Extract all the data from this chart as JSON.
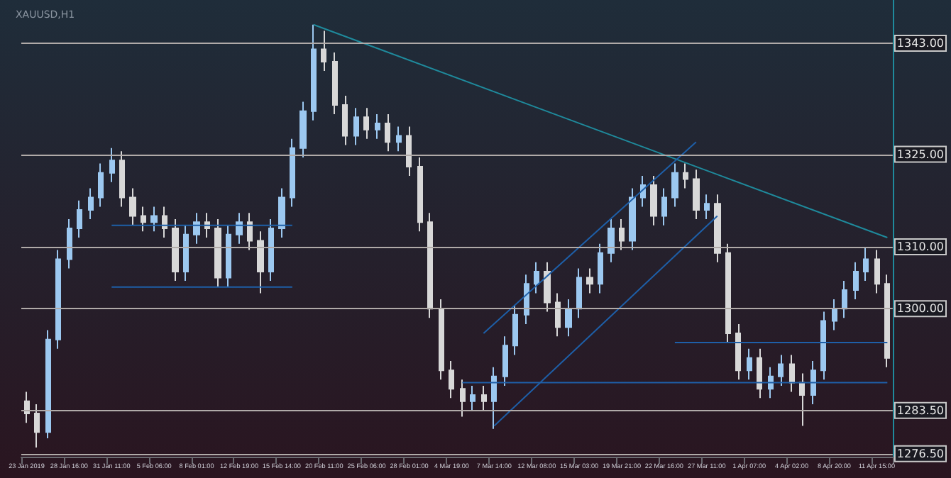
{
  "chart_data": {
    "type": "candlestick",
    "title": "XAUUSD,H1",
    "categories": [
      "23 Jan 2019",
      null,
      null,
      null,
      "28 Jan 16:00",
      null,
      null,
      null,
      "31 Jan 11:00",
      null,
      null,
      null,
      "5 Feb 06:00",
      null,
      null,
      null,
      "8 Feb 01:00",
      null,
      null,
      null,
      "12 Feb 19:00",
      null,
      null,
      null,
      "15 Feb 14:00",
      null,
      null,
      null,
      "20 Feb 11:00",
      null,
      null,
      null,
      "25 Feb 06:00",
      null,
      null,
      null,
      "28 Feb 01:00",
      null,
      null,
      null,
      "4 Mar 19:00",
      null,
      null,
      null,
      "7 Mar 14:00",
      null,
      null,
      null,
      "12 Mar 08:00",
      null,
      null,
      null,
      "15 Mar 03:00",
      null,
      null,
      null,
      "19 Mar 21:00",
      null,
      null,
      null,
      "22 Mar 16:00",
      null,
      null,
      null,
      "27 Mar 11:00",
      null,
      null,
      null,
      "1 Apr 07:00",
      null,
      null,
      null,
      "4 Apr 02:00",
      null,
      null,
      null,
      "8 Apr 20:00",
      null,
      null,
      null,
      "11 Apr 15:00",
      null
    ],
    "ylim": [
      1276,
      1350
    ],
    "yticks": [
      {
        "value": 1343,
        "label": "1343.00"
      },
      {
        "value": 1325,
        "label": "1325.00"
      },
      {
        "value": 1310,
        "label": "1310.00"
      },
      {
        "value": 1300,
        "label": "1300.00"
      },
      {
        "value": 1283.5,
        "label": "1283.50"
      },
      {
        "value": 1276.5,
        "label": "1276.50"
      }
    ],
    "grid": "y",
    "series": [
      {
        "type": "candlestick",
        "colors": [
          "#d8d8d8",
          "#d8d8d8",
          "#9cc8f0",
          "#9cc8f0",
          "#9cc8f0",
          "#9cc8f0",
          "#9cc8f0",
          "#9cc8f0",
          "#9cc8f0",
          "#d8d8d8",
          "#d8d8d8",
          "#d8d8d8",
          "#9cc8f0",
          "#d8d8d8",
          "#d8d8d8",
          "#9cc8f0",
          "#9cc8f0",
          "#d8d8d8",
          "#d8d8d8",
          "#9cc8f0",
          "#9cc8f0",
          "#d8d8d8",
          "#d8d8d8",
          "#9cc8f0",
          "#9cc8f0",
          "#9cc8f0",
          "#9cc8f0",
          "#9cc8f0",
          "#d8d8d8",
          "#d8d8d8",
          "#d8d8d8",
          "#9cc8f0",
          "#d8d8d8",
          "#9cc8f0",
          "#d8d8d8",
          "#9cc8f0",
          "#d8d8d8",
          "#d8d8d8",
          "#d8d8d8",
          "#d8d8d8",
          "#d8d8d8",
          "#d8d8d8",
          "#9cc8f0",
          "#d8d8d8",
          "#9cc8f0",
          "#9cc8f0",
          "#9cc8f0",
          "#9cc8f0",
          "#9cc8f0",
          "#d8d8d8",
          "#d8d8d8",
          "#9cc8f0",
          "#9cc8f0",
          "#d8d8d8",
          "#9cc8f0",
          "#9cc8f0",
          "#d8d8d8",
          "#9cc8f0",
          "#9cc8f0",
          "#d8d8d8",
          "#9cc8f0",
          "#9cc8f0",
          "#d8d8d8",
          "#d8d8d8",
          "#9cc8f0",
          "#d8d8d8",
          "#d8d8d8",
          "#d8d8d8",
          "#9cc8f0",
          "#d8d8d8",
          "#9cc8f0",
          "#9cc8f0",
          "#d8d8d8",
          "#d8d8d8",
          "#9cc8f0",
          "#9cc8f0",
          "#9cc8f0",
          "#9cc8f0",
          "#9cc8f0",
          "#9cc8f0",
          "#d8d8d8",
          "#d8d8d8"
        ],
        "ohlc": [
          [
            1285,
            1286.5,
            1281.5,
            1283
          ],
          [
            1283,
            1284.5,
            1277.5,
            1280
          ],
          [
            1280,
            1296.5,
            1279,
            1295
          ],
          [
            1295,
            1309.5,
            1293.5,
            1308
          ],
          [
            1308,
            1314.5,
            1306.5,
            1313
          ],
          [
            1313,
            1317.5,
            1311.5,
            1316
          ],
          [
            1316,
            1319.5,
            1314.5,
            1318
          ],
          [
            1318,
            1323.5,
            1316.5,
            1322
          ],
          [
            1322,
            1326,
            1320.5,
            1324
          ],
          [
            1324,
            1325.5,
            1316.5,
            1318
          ],
          [
            1318,
            1319.5,
            1313.5,
            1315
          ],
          [
            1315,
            1316.5,
            1312.5,
            1314
          ],
          [
            1314,
            1316.5,
            1312.5,
            1315
          ],
          [
            1315,
            1316.5,
            1311.5,
            1313
          ],
          [
            1313,
            1314.5,
            1304.5,
            1306
          ],
          [
            1306,
            1313.5,
            1304.5,
            1312
          ],
          [
            1312,
            1315.5,
            1310.5,
            1314
          ],
          [
            1314,
            1315.5,
            1311.5,
            1313
          ],
          [
            1313,
            1314.5,
            1303.5,
            1305
          ],
          [
            1305,
            1313.5,
            1303.5,
            1312
          ],
          [
            1312,
            1315.5,
            1310.5,
            1314
          ],
          [
            1314,
            1315.5,
            1309.5,
            1311
          ],
          [
            1311,
            1312.5,
            1302.5,
            1306
          ],
          [
            1306,
            1314.5,
            1304.5,
            1313
          ],
          [
            1313,
            1319.5,
            1311.5,
            1318
          ],
          [
            1318,
            1327.5,
            1316.5,
            1326
          ],
          [
            1326,
            1333.5,
            1324.5,
            1332
          ],
          [
            1332,
            1346,
            1330.5,
            1342
          ],
          [
            1342,
            1345,
            1338.5,
            1340
          ],
          [
            1340,
            1341.5,
            1331.5,
            1333
          ],
          [
            1333,
            1334.5,
            1326.5,
            1328
          ],
          [
            1328,
            1332.5,
            1326.5,
            1331
          ],
          [
            1331,
            1332.5,
            1327.5,
            1329
          ],
          [
            1329,
            1331.5,
            1327.5,
            1330
          ],
          [
            1330,
            1331.5,
            1325.5,
            1327
          ],
          [
            1327,
            1329.5,
            1325.5,
            1328
          ],
          [
            1328,
            1329.5,
            1321.5,
            1323
          ],
          [
            1323,
            1324.5,
            1312.5,
            1314
          ],
          [
            1314,
            1315.5,
            1298.5,
            1300
          ],
          [
            1300,
            1301.5,
            1288.5,
            1290
          ],
          [
            1290,
            1291.5,
            1285.5,
            1287
          ],
          [
            1287,
            1288.5,
            1282.5,
            1285
          ],
          [
            1285,
            1287.5,
            1283.5,
            1286
          ],
          [
            1286,
            1287.5,
            1283.5,
            1285
          ],
          [
            1285,
            1290.5,
            1280.5,
            1289
          ],
          [
            1289,
            1295.5,
            1287.5,
            1294
          ],
          [
            1294,
            1300.5,
            1292.5,
            1299
          ],
          [
            1299,
            1305.5,
            1297.5,
            1304
          ],
          [
            1304,
            1307.5,
            1302.5,
            1306
          ],
          [
            1306,
            1307.5,
            1299.5,
            1301
          ],
          [
            1301,
            1302.5,
            1295.5,
            1297
          ],
          [
            1297,
            1301.5,
            1295.5,
            1300
          ],
          [
            1300,
            1306.5,
            1298.5,
            1305
          ],
          [
            1305,
            1306.5,
            1302.5,
            1304
          ],
          [
            1304,
            1310.5,
            1302.5,
            1309
          ],
          [
            1309,
            1314.5,
            1307.5,
            1313
          ],
          [
            1313,
            1314.5,
            1309.5,
            1311
          ],
          [
            1311,
            1319.5,
            1309.5,
            1318
          ],
          [
            1318,
            1321.5,
            1316.5,
            1320
          ],
          [
            1320,
            1321.5,
            1313.5,
            1315
          ],
          [
            1315,
            1319.5,
            1313.5,
            1318
          ],
          [
            1318,
            1323.5,
            1316.5,
            1322
          ],
          [
            1322,
            1323.5,
            1319.5,
            1321
          ],
          [
            1321,
            1322.5,
            1314.5,
            1316
          ],
          [
            1316,
            1318.5,
            1314.5,
            1317
          ],
          [
            1317,
            1318.5,
            1307.5,
            1309
          ],
          [
            1309,
            1310.5,
            1294.5,
            1296
          ],
          [
            1296,
            1297.5,
            1288.5,
            1290
          ],
          [
            1290,
            1293.5,
            1288.5,
            1292
          ],
          [
            1292,
            1293.5,
            1285.5,
            1287
          ],
          [
            1287,
            1290.5,
            1285.5,
            1289
          ],
          [
            1289,
            1292.5,
            1287.5,
            1291
          ],
          [
            1291,
            1292.5,
            1286.5,
            1288
          ],
          [
            1288,
            1289.5,
            1281,
            1286
          ],
          [
            1286,
            1291.5,
            1284.5,
            1290
          ],
          [
            1290,
            1299.5,
            1288.5,
            1298
          ],
          [
            1298,
            1301.5,
            1296.5,
            1300
          ],
          [
            1300,
            1304.5,
            1298.5,
            1303
          ],
          [
            1303,
            1307.5,
            1301.5,
            1306
          ],
          [
            1306,
            1310,
            1304.5,
            1308
          ],
          [
            1308,
            1309.5,
            1302.5,
            1304
          ],
          [
            1304,
            1305.5,
            1290.5,
            1292
          ]
        ]
      },
      {
        "type": "line",
        "color": "#1f8a9c",
        "values": [
          null,
          null,
          null,
          null,
          null,
          null,
          null,
          null,
          null,
          null,
          null,
          null,
          null,
          null,
          null,
          null,
          null,
          null,
          null,
          null,
          null,
          null,
          null,
          null,
          null,
          null,
          null,
          1346,
          null,
          null,
          null,
          null,
          null,
          null,
          null,
          null,
          null,
          null,
          null,
          null,
          null,
          null,
          null,
          null,
          null,
          null,
          null,
          null,
          null,
          null,
          null,
          null,
          null,
          null,
          null,
          null,
          null,
          null,
          null,
          null,
          null,
          null,
          null,
          null,
          null,
          null,
          null,
          null,
          null,
          null,
          null,
          null,
          null,
          null,
          null,
          null,
          null,
          null,
          null,
          null,
          null,
          1311.5
        ]
      },
      {
        "type": "line",
        "color": "#1e5fa8",
        "values": [
          null,
          null,
          null,
          null,
          null,
          null,
          null,
          null,
          null,
          null,
          null,
          null,
          null,
          null,
          null,
          null,
          null,
          null,
          null,
          null,
          null,
          null,
          null,
          null,
          null,
          null,
          null,
          null,
          null,
          null,
          null,
          null,
          null,
          null,
          null,
          null,
          null,
          null,
          null,
          null,
          null,
          null,
          null,
          1296,
          null,
          null,
          null,
          null,
          null,
          null,
          null,
          null,
          null,
          null,
          null,
          null,
          null,
          null,
          null,
          null,
          null,
          null,
          null,
          1327,
          null,
          null,
          null,
          null,
          null,
          null,
          null,
          null,
          null,
          null,
          null,
          null,
          null,
          null,
          null,
          null,
          null,
          null
        ]
      },
      {
        "type": "line",
        "color": "#1e5fa8",
        "values": [
          null,
          null,
          null,
          null,
          null,
          null,
          null,
          null,
          null,
          null,
          null,
          null,
          null,
          null,
          null,
          null,
          null,
          null,
          null,
          null,
          null,
          null,
          null,
          null,
          null,
          null,
          null,
          null,
          null,
          null,
          null,
          null,
          null,
          null,
          null,
          null,
          null,
          null,
          null,
          null,
          null,
          null,
          null,
          null,
          1281,
          null,
          null,
          null,
          null,
          null,
          null,
          null,
          null,
          null,
          null,
          null,
          null,
          null,
          null,
          null,
          null,
          null,
          null,
          null,
          null,
          1315,
          null,
          null,
          null,
          null,
          null,
          null,
          null,
          null,
          null,
          null,
          null,
          null,
          null,
          null,
          null,
          null
        ]
      },
      {
        "type": "line",
        "color": "#1e5fa8",
        "values": [
          null,
          null,
          null,
          null,
          null,
          null,
          null,
          null,
          1313.5,
          null,
          null,
          null,
          null,
          null,
          null,
          null,
          null,
          null,
          null,
          null,
          null,
          null,
          null,
          null,
          null,
          1313.5,
          null,
          null,
          null,
          null,
          null,
          null,
          null,
          null,
          null,
          null,
          null,
          null,
          null,
          null,
          null,
          null,
          null,
          null,
          null,
          null,
          null,
          null,
          null,
          null,
          null,
          null,
          null,
          null,
          null,
          null,
          null,
          null,
          null,
          null,
          null,
          null,
          null,
          null,
          null,
          null,
          null,
          null,
          null,
          null,
          null,
          null,
          null,
          null,
          null,
          null,
          null,
          null,
          null,
          null,
          null,
          null
        ]
      },
      {
        "type": "line",
        "color": "#1e5fa8",
        "values": [
          null,
          null,
          null,
          null,
          null,
          null,
          null,
          null,
          1303.5,
          null,
          null,
          null,
          null,
          null,
          null,
          null,
          null,
          null,
          null,
          null,
          null,
          null,
          null,
          null,
          null,
          1303.5,
          null,
          null,
          null,
          null,
          null,
          null,
          null,
          null,
          null,
          null,
          null,
          null,
          null,
          null,
          null,
          null,
          null,
          null,
          null,
          null,
          null,
          null,
          null,
          null,
          null,
          null,
          null,
          null,
          null,
          null,
          null,
          null,
          null,
          null,
          null,
          null,
          null,
          null,
          null,
          null,
          null,
          null,
          null,
          null,
          null,
          null,
          null,
          null,
          null,
          null,
          null,
          null,
          null,
          null,
          null,
          null
        ]
      },
      {
        "type": "line",
        "color": "#1e5fa8",
        "values": [
          null,
          null,
          null,
          null,
          null,
          null,
          null,
          null,
          null,
          null,
          null,
          null,
          null,
          null,
          null,
          null,
          null,
          null,
          null,
          null,
          null,
          null,
          null,
          null,
          null,
          null,
          null,
          null,
          null,
          null,
          null,
          null,
          null,
          null,
          null,
          null,
          null,
          null,
          null,
          null,
          null,
          null,
          null,
          null,
          null,
          null,
          null,
          null,
          null,
          null,
          null,
          null,
          null,
          null,
          null,
          null,
          null,
          null,
          null,
          null,
          null,
          1294.5,
          null,
          null,
          null,
          null,
          null,
          null,
          null,
          null,
          null,
          null,
          null,
          null,
          null,
          null,
          null,
          null,
          null,
          null,
          null,
          1294.5
        ]
      },
      {
        "type": "line",
        "color": "#1e5fa8",
        "values": [
          null,
          null,
          null,
          null,
          null,
          null,
          null,
          null,
          null,
          null,
          null,
          null,
          null,
          null,
          null,
          null,
          null,
          null,
          null,
          null,
          null,
          null,
          null,
          null,
          null,
          null,
          null,
          null,
          null,
          null,
          null,
          null,
          null,
          null,
          null,
          null,
          null,
          null,
          null,
          null,
          null,
          1288,
          null,
          null,
          null,
          null,
          null,
          null,
          null,
          null,
          null,
          null,
          null,
          null,
          null,
          null,
          null,
          null,
          null,
          null,
          null,
          null,
          null,
          null,
          null,
          null,
          null,
          null,
          null,
          null,
          null,
          null,
          null,
          null,
          null,
          null,
          null,
          null,
          null,
          null,
          null,
          1288
        ]
      }
    ]
  }
}
